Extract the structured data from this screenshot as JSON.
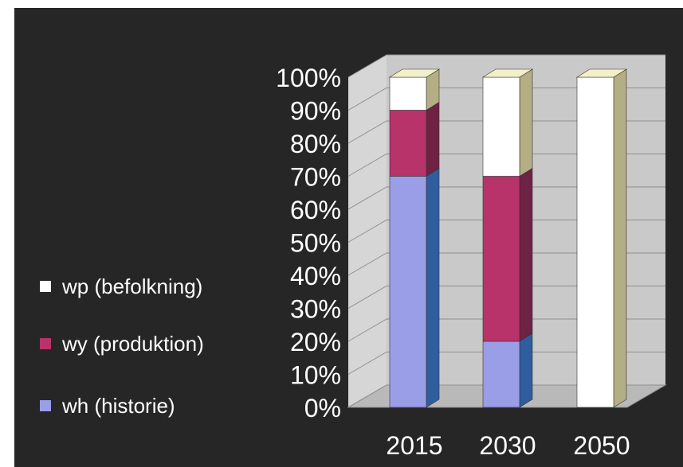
{
  "chart_data": {
    "type": "bar",
    "stacked": true,
    "percent": true,
    "three_d": true,
    "categories": [
      "2015",
      "2030",
      "2050"
    ],
    "series": [
      {
        "name": "wh (historie)",
        "values": [
          70,
          20,
          0
        ],
        "color": "#9a9ee6",
        "side_color": "#2f5d9e"
      },
      {
        "name": "wy (produktion)",
        "values": [
          20,
          50,
          0
        ],
        "color": "#b8336a",
        "side_color": "#6e2244"
      },
      {
        "name": "wp (befolkning)",
        "values": [
          10,
          30,
          100
        ],
        "color": "#ffffff",
        "side_color": "#b3ae84"
      }
    ],
    "y_ticks": [
      "0%",
      "10%",
      "20%",
      "30%",
      "40%",
      "50%",
      "60%",
      "70%",
      "80%",
      "90%",
      "100%"
    ],
    "ylim": [
      0,
      100
    ],
    "grid": true,
    "legend_position": "left",
    "colors": {
      "background": "#262626",
      "wall": "#c9c9c9",
      "floor": "#b9b9b9",
      "text": "#ffffff",
      "top_face": "#f2efc9"
    }
  }
}
